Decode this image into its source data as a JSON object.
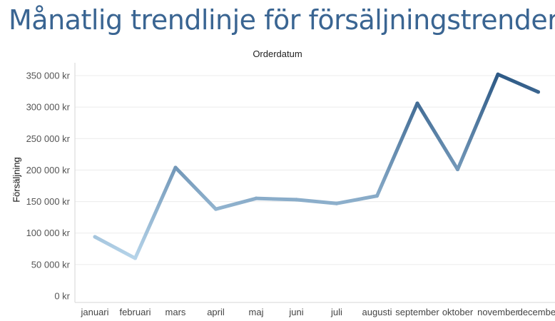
{
  "page": {
    "title": "Månatlig trendlinje för försäljningstrender"
  },
  "chart_data": {
    "type": "line",
    "title": "Månatlig trendlinje för försäljningstrender",
    "xlabel": "Orderdatum",
    "ylabel": "Försäljning",
    "categories": [
      "januari",
      "februari",
      "mars",
      "april",
      "maj",
      "juni",
      "juli",
      "augusti",
      "september",
      "oktober",
      "november",
      "december"
    ],
    "series": [
      {
        "values": [
          94000,
          60000,
          204000,
          138000,
          155000,
          153000,
          147000,
          159000,
          306000,
          201000,
          352000,
          324000
        ]
      }
    ],
    "ylim": [
      0,
      350000
    ],
    "yticks": [
      0,
      50000,
      100000,
      150000,
      200000,
      250000,
      300000,
      350000
    ],
    "ytick_labels": [
      "0 kr",
      "50 000 kr",
      "100 000 kr",
      "150 000 kr",
      "200 000 kr",
      "250 000 kr",
      "300 000 kr",
      "350 000 kr"
    ],
    "grid": true,
    "color_gradient": [
      "#b9d7ec",
      "#2e5a86"
    ]
  }
}
